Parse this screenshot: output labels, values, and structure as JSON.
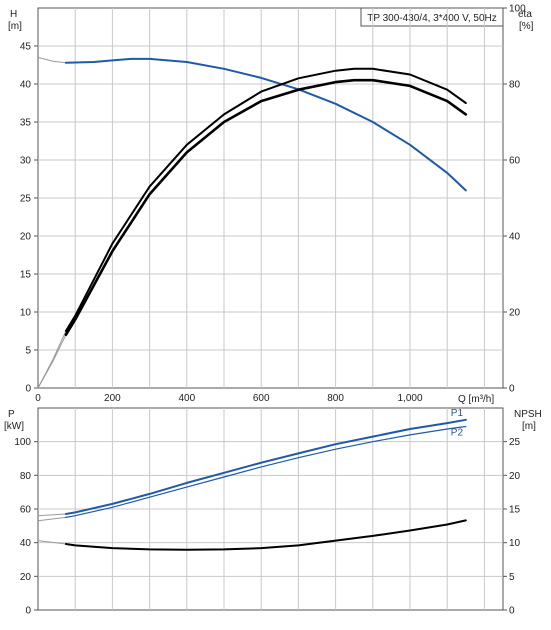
{
  "header": {
    "left_axis_label": "H",
    "left_axis_unit": "[m]",
    "right_axis_label": "eta",
    "right_axis_unit": "[%]",
    "title": "TP 300-430/4, 3*400 V, 50Hz",
    "x_axis_label": "Q [m³/h]"
  },
  "lower_header": {
    "left_axis_label": "P",
    "left_axis_unit": "[kW]",
    "right_axis_label": "NPSH",
    "right_axis_unit": "[m]"
  },
  "colors": {
    "head_curve": "#1f5aa6",
    "efficiency_curve": "#000000",
    "power_p1": "#1f5aa6",
    "power_p2": "#1f5aa6",
    "npsh_curve": "#000000",
    "extrapolated": "#9a9a9a"
  },
  "chart_data": [
    {
      "type": "line",
      "title": "TP 300-430/4, 3*400 V, 50Hz",
      "xlabel": "Q [m³/h]",
      "ylabel": "H [m]",
      "y2label": "eta [%]",
      "xlim": [
        0,
        1250
      ],
      "ylim": [
        0,
        50
      ],
      "y2lim": [
        0,
        100
      ],
      "x_ticks": [
        "0",
        "200",
        "400",
        "600",
        "800",
        "1,000"
      ],
      "y_ticks": [
        "0",
        "5",
        "10",
        "15",
        "20",
        "25",
        "30",
        "35",
        "40",
        "45"
      ],
      "y2_ticks": [
        "0",
        "20",
        "40",
        "60",
        "80",
        "100"
      ],
      "grid": true,
      "series": [
        {
          "axis": "left",
          "x": [
            75,
            150,
            200,
            250,
            300,
            400,
            500,
            600,
            700,
            800,
            900,
            1000,
            1100,
            1150
          ],
          "y": [
            42.8,
            42.9,
            43.1,
            43.3,
            43.3,
            42.9,
            42.0,
            40.8,
            39.3,
            37.4,
            35.0,
            32.0,
            28.3,
            26.0
          ],
          "extrapolated": {
            "x": [
              0,
              40,
              75
            ],
            "y": [
              43.5,
              43.0,
              42.8
            ]
          }
        },
        {
          "axis": "right",
          "x": [
            75,
            100,
            200,
            300,
            400,
            500,
            600,
            700,
            800,
            850,
            900,
            1000,
            1100,
            1150
          ],
          "y": [
            14,
            18,
            36,
            51,
            62,
            70,
            75.5,
            78.5,
            80.5,
            81,
            81,
            79.5,
            75.5,
            72
          ],
          "extrapolated": {
            "x": [
              0,
              40,
              75
            ],
            "y": [
              0,
              7,
              14
            ]
          }
        },
        {
          "axis": "right",
          "x": [
            75,
            100,
            200,
            300,
            400,
            500,
            600,
            700,
            800,
            850,
            900,
            1000,
            1100,
            1150
          ],
          "y": [
            15,
            19,
            38,
            53,
            64,
            72,
            78,
            81.5,
            83.5,
            84,
            84,
            82.5,
            78.5,
            75
          ],
          "extrapolated": {
            "x": [
              0,
              40,
              75
            ],
            "y": [
              0,
              7.5,
              15
            ]
          }
        }
      ]
    },
    {
      "type": "line",
      "xlabel": "",
      "ylabel": "P [kW]",
      "y2label": "NPSH [m]",
      "xlim": [
        0,
        1250
      ],
      "ylim": [
        0,
        120
      ],
      "y2lim": [
        0,
        30
      ],
      "y_ticks": [
        "0",
        "20",
        "40",
        "60",
        "80",
        "100"
      ],
      "y2_ticks": [
        "0",
        "5",
        "10",
        "15",
        "20",
        "25"
      ],
      "grid": true,
      "series": [
        {
          "name": "P1",
          "axis": "left",
          "x": [
            75,
            100,
            200,
            300,
            400,
            500,
            600,
            700,
            800,
            900,
            1000,
            1100,
            1150
          ],
          "y": [
            57,
            58,
            63,
            69,
            75.5,
            81.5,
            87.5,
            93,
            98.5,
            103,
            107.5,
            111,
            113
          ],
          "extrapolated": {
            "x": [
              0,
              75
            ],
            "y": [
              56,
              57
            ]
          }
        },
        {
          "name": "P2",
          "axis": "left",
          "x": [
            75,
            100,
            200,
            300,
            400,
            500,
            600,
            700,
            800,
            900,
            1000,
            1100,
            1150
          ],
          "y": [
            55,
            56,
            61,
            67,
            73,
            79,
            85,
            90.5,
            95.5,
            100,
            104,
            107.5,
            109
          ],
          "extrapolated": {
            "x": [
              0,
              75
            ],
            "y": [
              53,
              55
            ]
          }
        },
        {
          "axis": "right",
          "x": [
            75,
            100,
            200,
            300,
            400,
            500,
            600,
            700,
            800,
            900,
            1000,
            1100,
            1150
          ],
          "y": [
            9.8,
            9.6,
            9.2,
            9.0,
            8.95,
            9.0,
            9.2,
            9.6,
            10.3,
            11.0,
            11.8,
            12.7,
            13.3
          ],
          "extrapolated": {
            "x": [
              0,
              75
            ],
            "y": [
              10.3,
              9.8
            ]
          }
        }
      ]
    }
  ]
}
